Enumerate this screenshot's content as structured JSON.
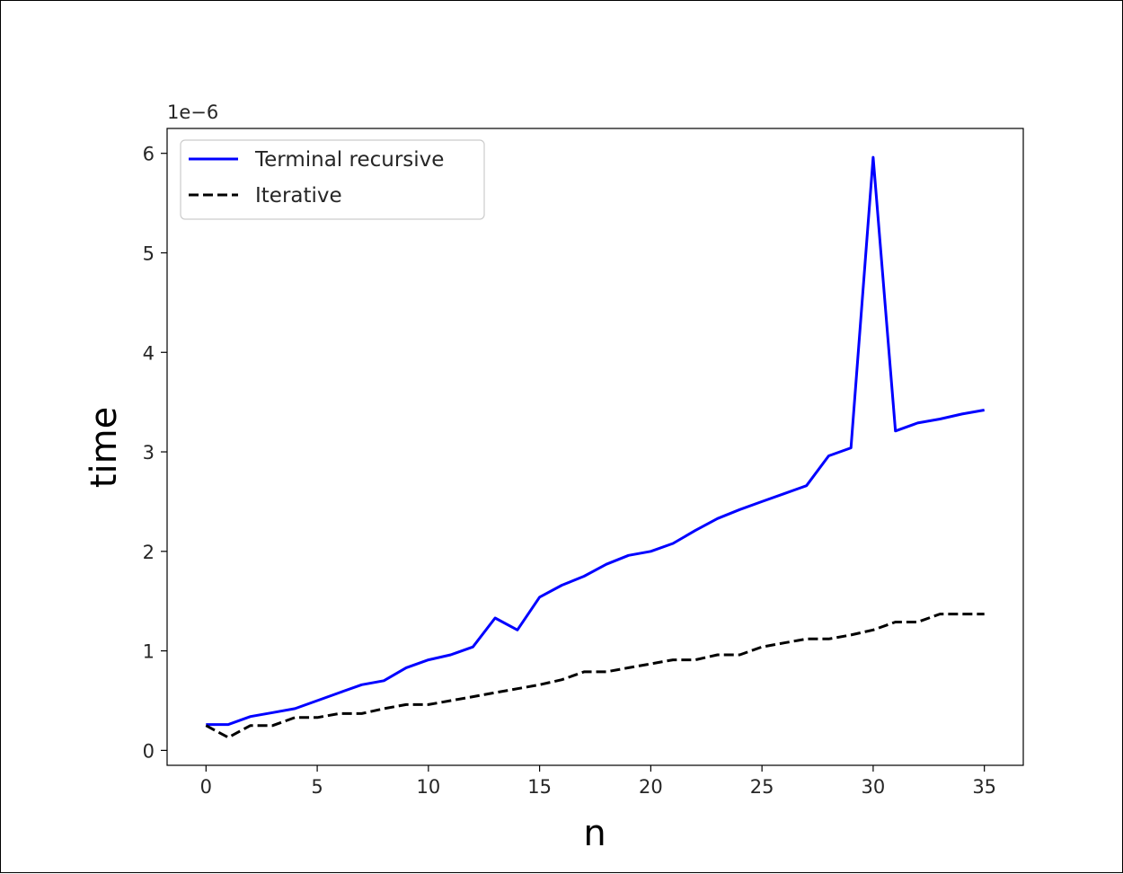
{
  "chart_data": {
    "type": "line",
    "xlabel": "n",
    "ylabel": "time",
    "y_offset_text": "1e−6",
    "y_scale": 1e-06,
    "xlim": [
      -1.75,
      36.75
    ],
    "ylim": [
      -0.15,
      6.25
    ],
    "x_ticks": [
      0,
      5,
      10,
      15,
      20,
      25,
      30,
      35
    ],
    "x_tick_labels": [
      "0",
      "5",
      "10",
      "15",
      "20",
      "25",
      "30",
      "35"
    ],
    "y_ticks": [
      0,
      1,
      2,
      3,
      4,
      5,
      6
    ],
    "y_tick_labels": [
      "0",
      "1",
      "2",
      "3",
      "4",
      "5",
      "6"
    ],
    "grid": false,
    "legend_position": "top-left",
    "x": [
      0,
      1,
      2,
      3,
      4,
      5,
      6,
      7,
      8,
      9,
      10,
      11,
      12,
      13,
      14,
      15,
      16,
      17,
      18,
      19,
      20,
      21,
      22,
      23,
      24,
      25,
      26,
      27,
      28,
      29,
      30,
      31,
      32,
      33,
      34,
      35
    ],
    "series": [
      {
        "name": "Terminal recursive",
        "color": "#0000ff",
        "style": "solid",
        "values": [
          0.26,
          0.26,
          0.34,
          0.38,
          0.42,
          0.5,
          0.58,
          0.66,
          0.7,
          0.83,
          0.91,
          0.96,
          1.04,
          1.33,
          1.21,
          1.54,
          1.66,
          1.75,
          1.87,
          1.96,
          2.0,
          2.08,
          2.21,
          2.33,
          2.42,
          2.5,
          2.58,
          2.66,
          2.96,
          3.04,
          5.96,
          3.21,
          3.29,
          3.33,
          3.38,
          3.42
        ]
      },
      {
        "name": "Iterative",
        "color": "#000000",
        "style": "dashed",
        "values": [
          0.25,
          0.13,
          0.25,
          0.25,
          0.33,
          0.33,
          0.37,
          0.37,
          0.42,
          0.46,
          0.46,
          0.5,
          0.54,
          0.58,
          0.62,
          0.66,
          0.71,
          0.79,
          0.79,
          0.83,
          0.87,
          0.91,
          0.91,
          0.96,
          0.96,
          1.04,
          1.08,
          1.12,
          1.12,
          1.16,
          1.21,
          1.29,
          1.29,
          1.37,
          1.37,
          1.37
        ]
      }
    ]
  }
}
